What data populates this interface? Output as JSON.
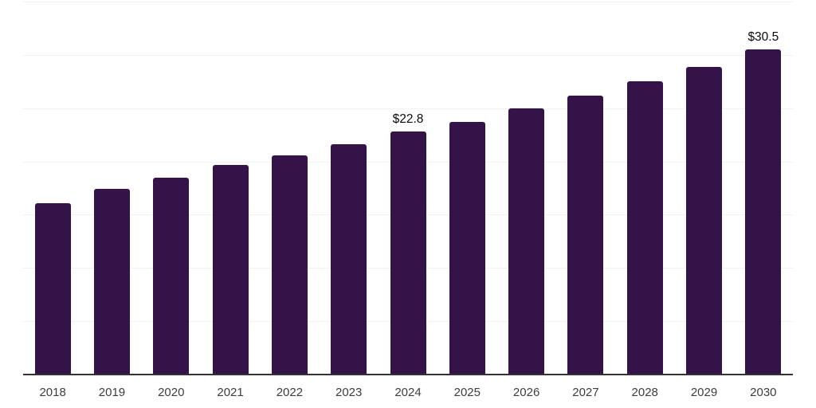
{
  "chart_data": {
    "type": "bar",
    "title": "",
    "categories": [
      "2018",
      "2019",
      "2020",
      "2021",
      "2022",
      "2023",
      "2024",
      "2025",
      "2026",
      "2027",
      "2028",
      "2029",
      "2030"
    ],
    "values": [
      16.1,
      17.4,
      18.5,
      19.7,
      20.6,
      21.6,
      22.8,
      23.7,
      25.0,
      26.2,
      27.5,
      28.9,
      30.5
    ],
    "value_labels": {
      "2024": "$22.8",
      "2030": "$30.5"
    },
    "xlabel": "",
    "ylabel": "",
    "ylim": [
      0,
      35
    ],
    "gridline_step": 5,
    "grid": "horizontal",
    "legend": "none",
    "colors": {
      "bar": "#341348",
      "gridline": "#f1f1f1",
      "axis": "#333333",
      "tick_label": "#3d3d3d",
      "value_label": "#0b0b0b",
      "background": "#ffffff"
    }
  }
}
